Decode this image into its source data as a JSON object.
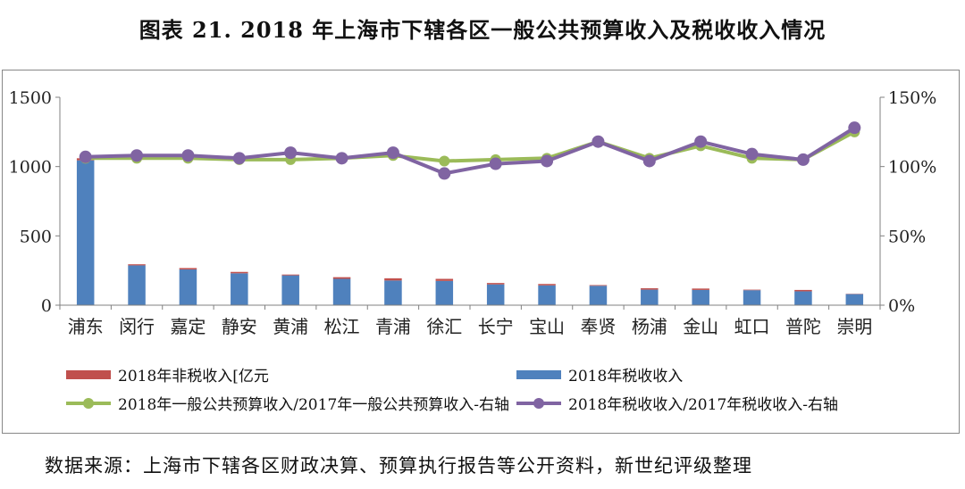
{
  "title": "图表 21. 2018 年上海市下辖各区一般公共预算收入及税收收入情况",
  "source": "数据来源：上海市下辖各区财政决算、预算执行报告等公开资料，新世纪评级整理",
  "chart_data": {
    "type": "bar",
    "categories": [
      "浦东",
      "闵行",
      "嘉定",
      "静安",
      "黄浦",
      "松江",
      "青浦",
      "徐汇",
      "长宁",
      "宝山",
      "奉贤",
      "杨浦",
      "金山",
      "虹口",
      "普陀",
      "崇明"
    ],
    "y_ticks": [
      "0",
      "500",
      "1000",
      "1500"
    ],
    "y2_ticks": [
      "0%",
      "50%",
      "100%",
      "150%"
    ],
    "ylim": [
      0,
      1500
    ],
    "y2lim": [
      0,
      150
    ],
    "stacked": true,
    "series": [
      {
        "name": "2018年非税收入[亿元",
        "kind": "bar",
        "color": "#C0504D",
        "values": [
          15,
          8,
          10,
          10,
          6,
          12,
          16,
          15,
          10,
          10,
          5,
          10,
          10,
          4,
          10,
          2
        ]
      },
      {
        "name": "2018年税收收入",
        "kind": "bar",
        "color": "#4F81BD",
        "values": [
          1045,
          287,
          258,
          230,
          215,
          190,
          178,
          175,
          150,
          143,
          140,
          112,
          110,
          108,
          100,
          80
        ]
      },
      {
        "name": "2018年一般公共预算收入/2017年一般公共预算收入-右轴",
        "kind": "line",
        "axis": "right",
        "color": "#9BBB59",
        "values": [
          106,
          106,
          106,
          105,
          105,
          106,
          108,
          104,
          105,
          106,
          118,
          106,
          115,
          106,
          105,
          125
        ]
      },
      {
        "name": "2018年税收收入/2017年税收收入-右轴",
        "kind": "line",
        "axis": "right",
        "color": "#8064A2",
        "values": [
          107,
          108,
          108,
          106,
          110,
          106,
          110,
          95,
          102,
          104,
          118,
          104,
          118,
          109,
          105,
          128
        ]
      }
    ],
    "legend_position": "bottom"
  }
}
